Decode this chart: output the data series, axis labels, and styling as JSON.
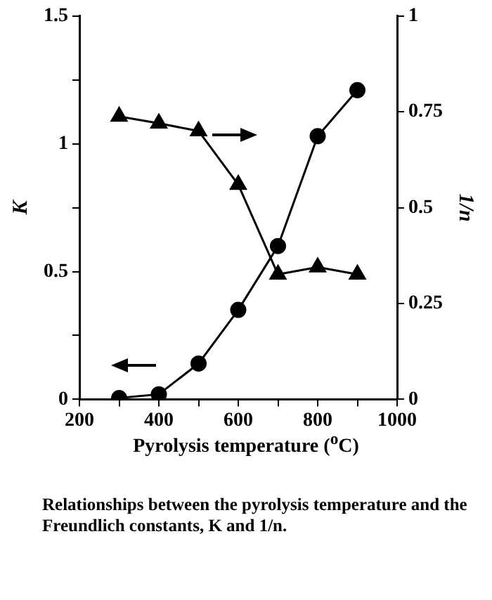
{
  "chart_data": {
    "type": "line",
    "xlabel": "Pyrolysis temperature ($^{o}$C)",
    "ylabel": "K",
    "y2label": "1/n",
    "x": [
      300,
      400,
      500,
      600,
      700,
      800,
      900
    ],
    "series": [
      {
        "color": "#000000",
        "marker": "circle",
        "values": [
          0.005,
          0.02,
          0.14,
          0.35,
          0.6,
          1.03,
          1.21
        ]
      },
      {
        "color": "#000000",
        "marker": "triangle",
        "axis": "y2",
        "values": [
          0.738,
          0.72,
          0.7,
          0.56,
          0.326,
          0.345,
          0.326
        ]
      }
    ],
    "xlim": [
      200,
      1000
    ],
    "xticks": [
      200,
      {
        "value": 300,
        "label": null
      },
      400,
      {
        "value": 500,
        "label": null
      },
      600,
      {
        "value": 700,
        "label": null
      },
      800,
      {
        "value": 900,
        "label": null
      },
      1000
    ],
    "ylim": [
      0,
      1.5
    ],
    "yticks": [
      0,
      {
        "value": 0.25,
        "label": null
      },
      0.5,
      {
        "value": 0.75,
        "label": null
      },
      1,
      {
        "value": 1.25,
        "label": null
      },
      1.5
    ],
    "y2lim": [
      0,
      1
    ],
    "y2ticks": [
      0,
      0.25,
      0.5,
      0.75,
      1
    ],
    "annotations": [
      "Relationships between the pyrolysis temperature and the Freundlich constants, K and 1/n."
    ]
  }
}
